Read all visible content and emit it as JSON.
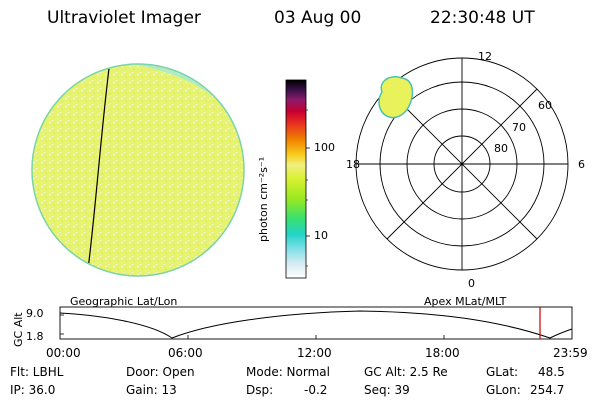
{
  "header": {
    "instrument": "Ultraviolet Imager",
    "date": "03 Aug 00",
    "time": "22:30:48 UT"
  },
  "colorbar": {
    "unit_label": "photon cm⁻²s⁻¹",
    "ticks": [
      "100",
      "10"
    ],
    "scale": "log"
  },
  "left_panel": {
    "label": "Geographic Lat/Lon",
    "image_description_fill": "#e8f57a"
  },
  "right_panel": {
    "label": "Apex MLat/MLT",
    "mlt_labels": {
      "top": "12",
      "left": "18",
      "right": "6",
      "bottom": "0"
    },
    "mlat_labels": [
      "60",
      "70",
      "80"
    ]
  },
  "timeline": {
    "y_label": "GC Alt",
    "y_ticks": [
      "9.0",
      "1.8"
    ],
    "x_ticks": [
      "00:00",
      "06:00",
      "12:00",
      "18:00",
      "23:59"
    ],
    "marker_fraction": 0.9375,
    "marker_color": "#cc0000"
  },
  "info": {
    "flt": "Flt: LBHL",
    "ip": "IP: 36.0",
    "door": "Door: Open",
    "gain": "Gain: 13",
    "mode": "Mode: Normal",
    "dsp_label": "Dsp:",
    "dsp_value": "-0.2",
    "gc_alt": "GC Alt: 2.5 Re",
    "seq": "Seq: 39",
    "glat_label": "GLat:",
    "glat_value": "48.5",
    "glon_label": "GLon:",
    "glon_value": "254.7"
  }
}
